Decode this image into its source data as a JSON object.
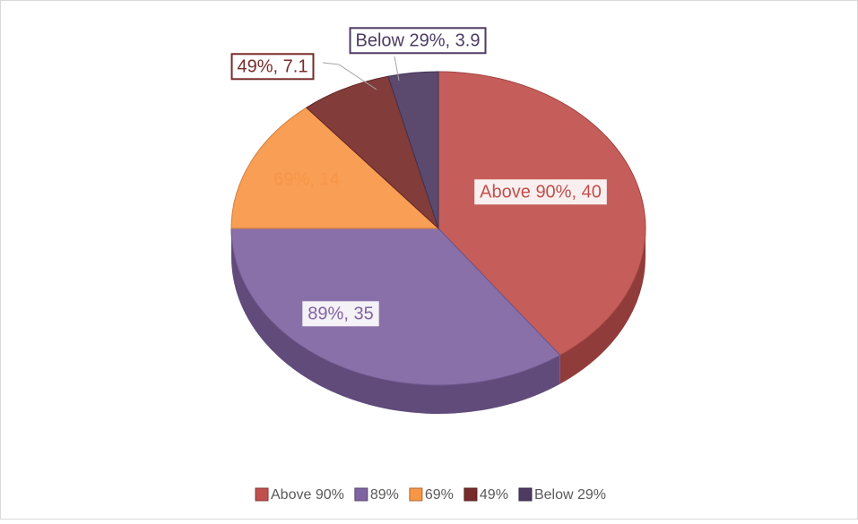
{
  "chart_data": {
    "type": "pie3d",
    "categories": [
      "Above 90%",
      "89%",
      "69%",
      "49%",
      "Below 29%"
    ],
    "values": [
      40,
      35,
      14,
      7.1,
      3.9
    ],
    "value_labels": [
      "Above 90%, 40",
      "89%, 35",
      "69%, 14",
      "49%, 7.1",
      "Below 29%, 3.9"
    ],
    "colors": [
      "#c0504d",
      "#8064a2",
      "#f79646",
      "#772c2a",
      "#4d3b62"
    ],
    "legend": "bottom"
  }
}
